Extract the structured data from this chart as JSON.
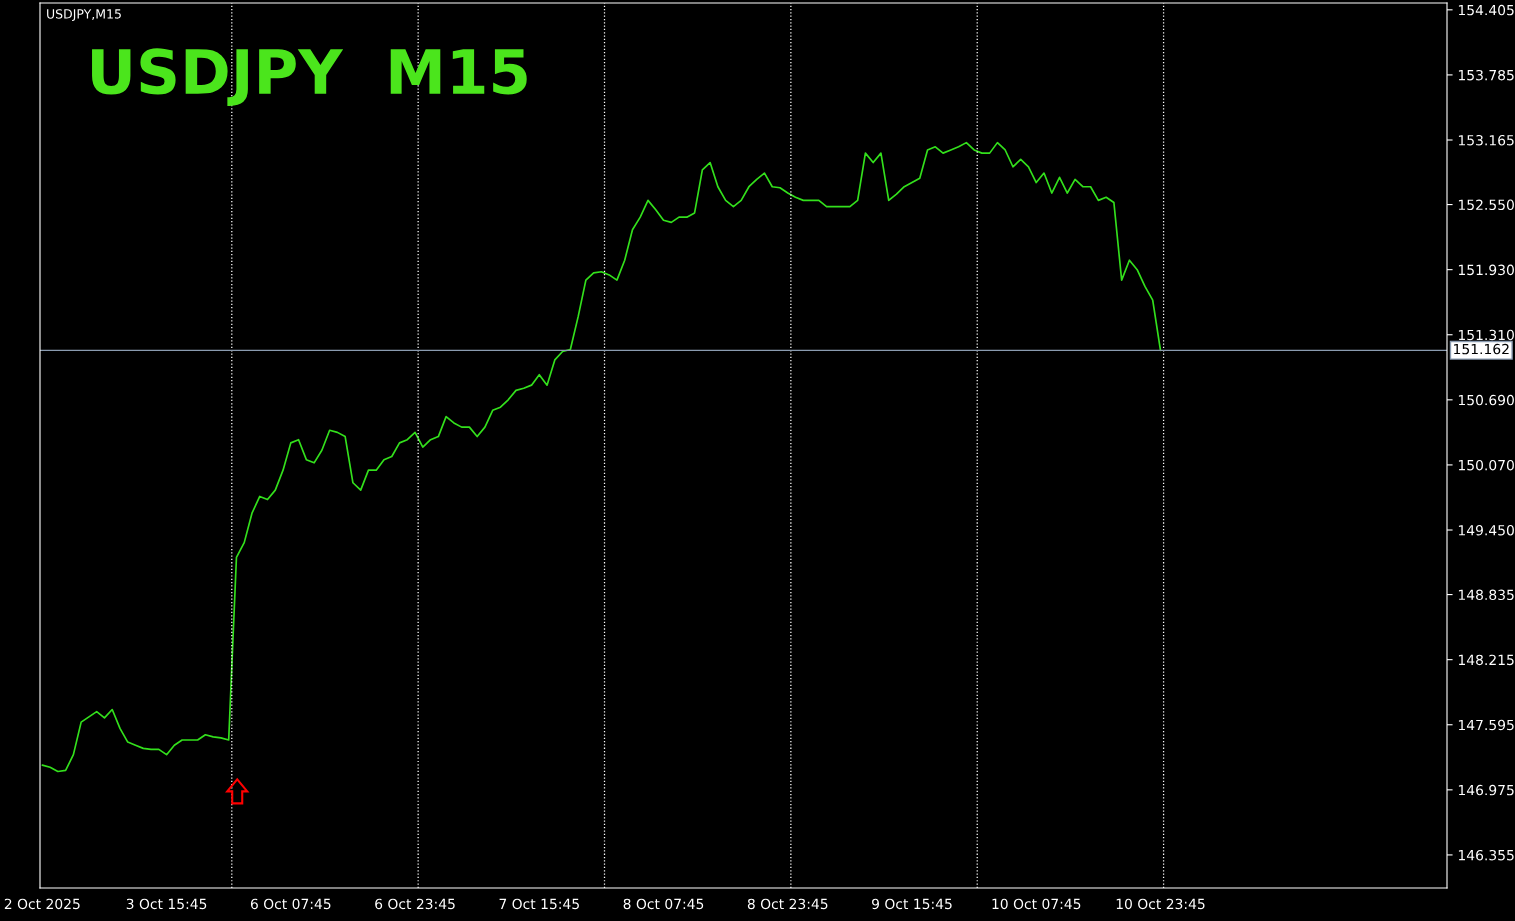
{
  "chart_data": {
    "type": "line",
    "title": "USDJPY  M15",
    "subtitle": "USDJPY,M15",
    "categories": [
      "2 Oct 2025",
      null,
      null,
      null,
      null,
      null,
      null,
      null,
      null,
      null,
      null,
      null,
      null,
      null,
      null,
      null,
      "3 Oct 15:45",
      null,
      null,
      null,
      null,
      null,
      null,
      null,
      null,
      null,
      null,
      null,
      null,
      null,
      null,
      null,
      "6 Oct 07:45",
      null,
      null,
      null,
      null,
      null,
      null,
      null,
      null,
      null,
      null,
      null,
      null,
      null,
      null,
      null,
      "6 Oct 23:45",
      null,
      null,
      null,
      null,
      null,
      null,
      null,
      null,
      null,
      null,
      null,
      null,
      null,
      null,
      null,
      "7 Oct 15:45",
      null,
      null,
      null,
      null,
      null,
      null,
      null,
      null,
      null,
      null,
      null,
      null,
      null,
      null,
      null,
      "8 Oct 07:45",
      null,
      null,
      null,
      null,
      null,
      null,
      null,
      null,
      null,
      null,
      null,
      null,
      null,
      null,
      null,
      "8 Oct 23:45",
      null,
      null,
      null,
      null,
      null,
      null,
      null,
      null,
      null,
      null,
      null,
      null,
      null,
      null,
      null,
      "9 Oct 15:45",
      null,
      null,
      null,
      null,
      null,
      null,
      null,
      null,
      null,
      null,
      null,
      null,
      null,
      null,
      null,
      "10 Oct 07:45",
      null,
      null,
      null,
      null,
      null,
      null,
      null,
      null,
      null,
      null,
      null,
      null,
      null,
      null,
      null,
      "10 Oct 23:45",
      null,
      null,
      null,
      null,
      null,
      null,
      null,
      null,
      null,
      null,
      null,
      null,
      null,
      null,
      null,
      null,
      null,
      null,
      null,
      null,
      null,
      null,
      null,
      null,
      null,
      null,
      null,
      null,
      null,
      null,
      null,
      null,
      null,
      null,
      null,
      null
    ],
    "series": [
      {
        "color": "#33e01c",
        "values": [
          147.21,
          147.19,
          147.15,
          147.16,
          147.31,
          147.62,
          147.67,
          147.72,
          147.66,
          147.74,
          147.56,
          147.43,
          147.4,
          147.37,
          147.36,
          147.36,
          147.31,
          147.4,
          147.45,
          147.45,
          147.45,
          147.5,
          147.48,
          147.47,
          147.45,
          149.19,
          149.33,
          149.61,
          149.77,
          149.74,
          149.83,
          150.02,
          150.28,
          150.31,
          150.12,
          150.09,
          150.21,
          150.4,
          150.38,
          150.34,
          149.9,
          149.83,
          150.02,
          150.02,
          150.12,
          150.15,
          150.28,
          150.31,
          150.38,
          150.24,
          150.31,
          150.34,
          150.53,
          150.47,
          150.43,
          150.43,
          150.34,
          150.43,
          150.59,
          150.62,
          150.69,
          150.78,
          150.8,
          150.83,
          150.93,
          150.83,
          151.07,
          151.15,
          151.17,
          151.48,
          151.83,
          151.9,
          151.91,
          151.88,
          151.83,
          152.02,
          152.31,
          152.43,
          152.59,
          152.5,
          152.4,
          152.38,
          152.43,
          152.43,
          152.47,
          152.88,
          152.95,
          152.72,
          152.59,
          152.53,
          152.59,
          152.72,
          152.79,
          152.85,
          152.72,
          152.71,
          152.66,
          152.62,
          152.59,
          152.59,
          152.59,
          152.53,
          152.53,
          152.53,
          152.53,
          152.59,
          153.04,
          152.95,
          153.04,
          152.59,
          152.65,
          152.72,
          152.76,
          152.8,
          153.07,
          153.1,
          153.04,
          153.07,
          153.1,
          153.14,
          153.07,
          153.04,
          153.04,
          153.14,
          153.07,
          152.91,
          152.98,
          152.91,
          152.76,
          152.85,
          152.66,
          152.81,
          152.66,
          152.79,
          152.72,
          152.72,
          152.59,
          152.62,
          152.57,
          151.83,
          152.02,
          151.93,
          151.77,
          151.64,
          151.16,
          null,
          null,
          null,
          null,
          null,
          null,
          null,
          null,
          null,
          null,
          null,
          null,
          null,
          null,
          null,
          null,
          null,
          null,
          null,
          null,
          null,
          null,
          null,
          null,
          null,
          null,
          null,
          null,
          null,
          null,
          null,
          null,
          null,
          null,
          null,
          null
        ]
      }
    ],
    "ylim": [
      146.04,
      154.47
    ],
    "yticks": [
      {
        "value": 146.355,
        "label": "146.355"
      },
      {
        "value": 146.975,
        "label": "146.975"
      },
      {
        "value": 147.595,
        "label": "147.595"
      },
      {
        "value": 148.215,
        "label": "148.215"
      },
      {
        "value": 148.835,
        "label": "148.835"
      },
      {
        "value": 149.45,
        "label": "149.450"
      },
      {
        "value": 150.07,
        "label": "150.070"
      },
      {
        "value": 150.69,
        "label": "150.690"
      },
      {
        "value": 151.31,
        "label": "151.310"
      },
      {
        "value": 151.93,
        "label": "151.930"
      },
      {
        "value": 152.55,
        "label": "152.550"
      },
      {
        "value": 153.165,
        "label": "153.165"
      },
      {
        "value": 153.785,
        "label": "153.785"
      },
      {
        "value": 154.405,
        "label": "154.405"
      }
    ],
    "ref_lines": [
      {
        "axis": "y",
        "value": 151.162,
        "label": "151.162",
        "color": "#8a9bb0",
        "line_style": "solid"
      }
    ],
    "grid": false,
    "marker": "none",
    "line_style": "solid"
  }
}
